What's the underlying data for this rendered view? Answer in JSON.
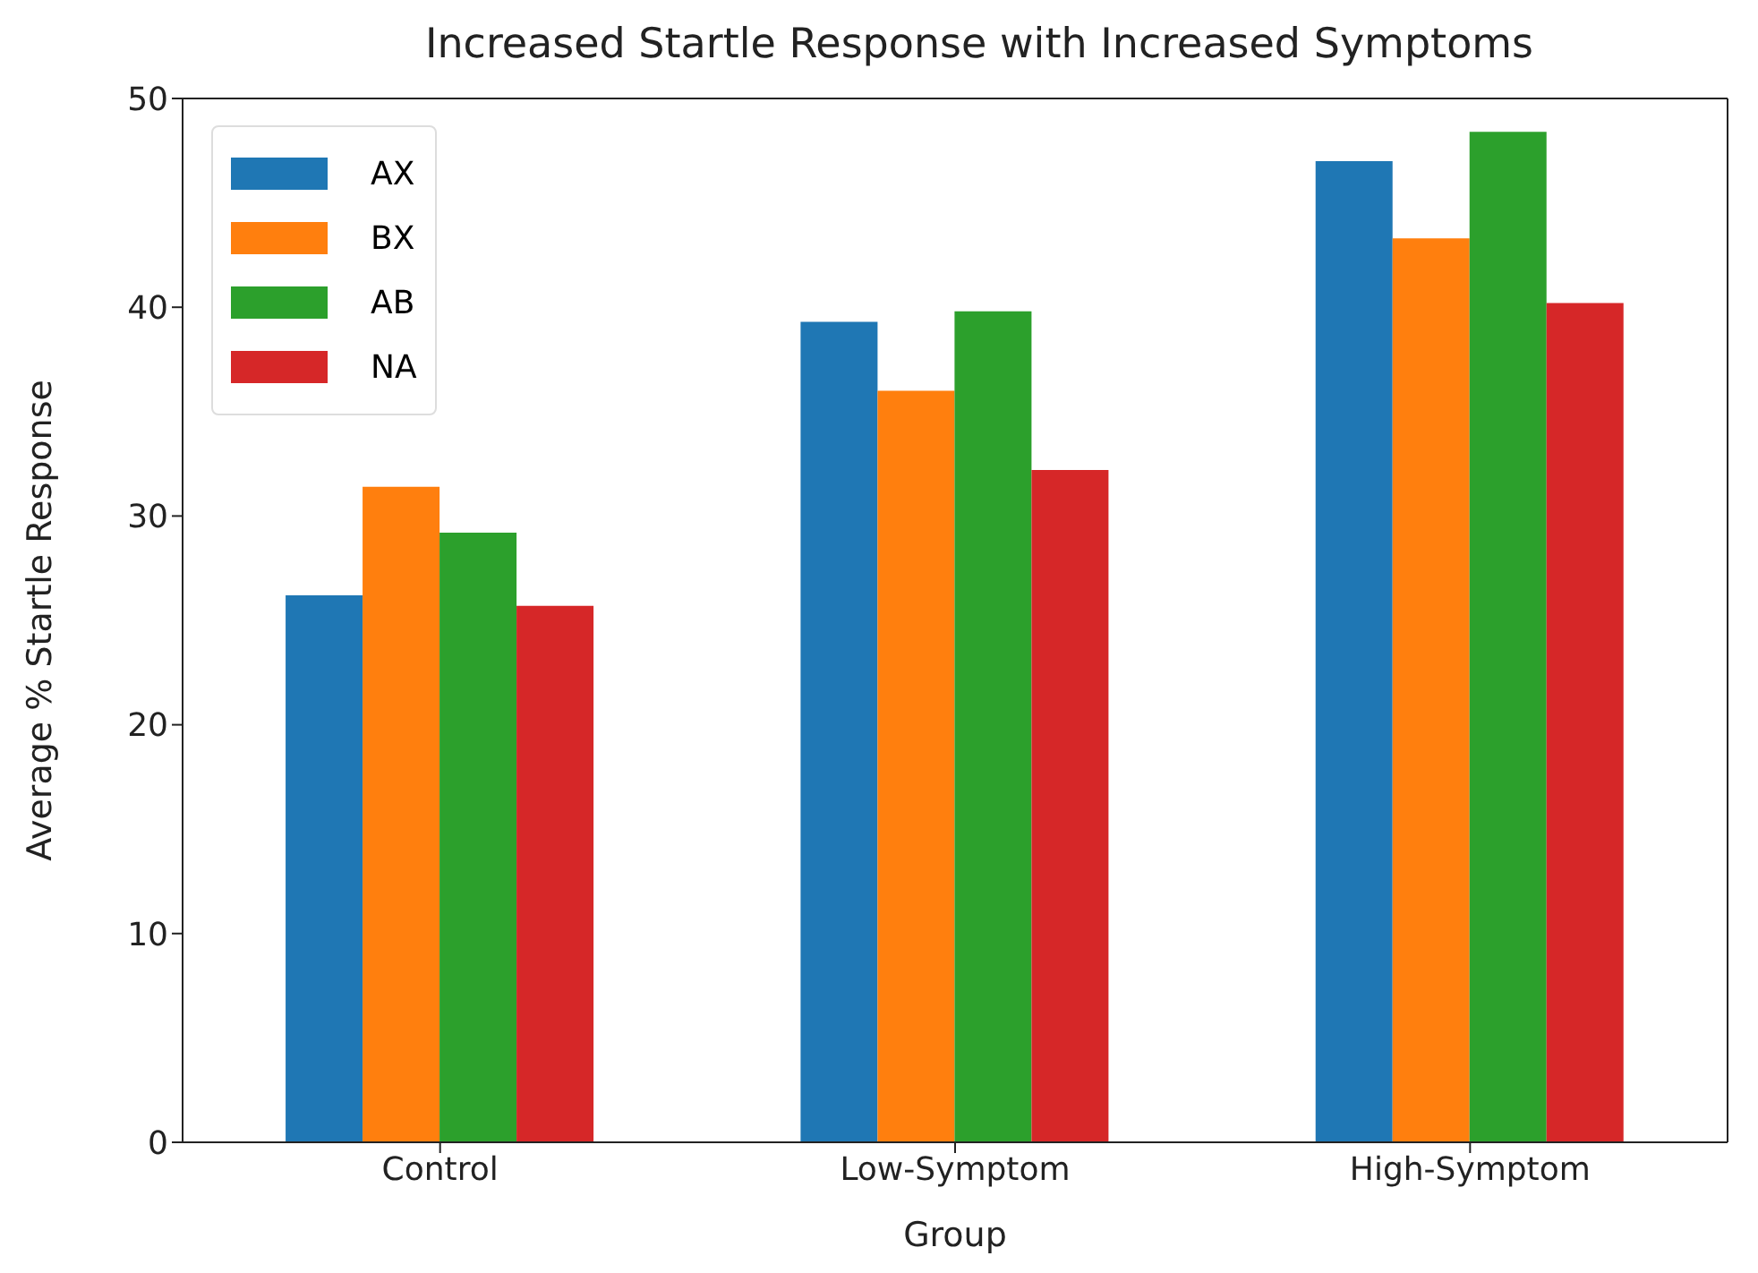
{
  "chart_data": {
    "type": "bar",
    "title": "Increased Startle Response with Increased Symptoms",
    "xlabel": "Group",
    "ylabel": "Average % Startle Response",
    "categories": [
      "Control",
      "Low-Symptom",
      "High-Symptom"
    ],
    "series": [
      {
        "name": "AX",
        "color": "#1f77b4",
        "values": [
          26.2,
          39.3,
          47.0
        ]
      },
      {
        "name": "BX",
        "color": "#ff7f0e",
        "values": [
          31.4,
          36.0,
          43.3
        ]
      },
      {
        "name": "AB",
        "color": "#2ca02c",
        "values": [
          29.2,
          39.8,
          48.4
        ]
      },
      {
        "name": "NA",
        "color": "#d62728",
        "values": [
          25.7,
          32.2,
          40.2
        ]
      }
    ],
    "ylim": [
      0,
      50
    ],
    "yticks": [
      0,
      10,
      20,
      30,
      40,
      50
    ],
    "legend": "top left"
  }
}
